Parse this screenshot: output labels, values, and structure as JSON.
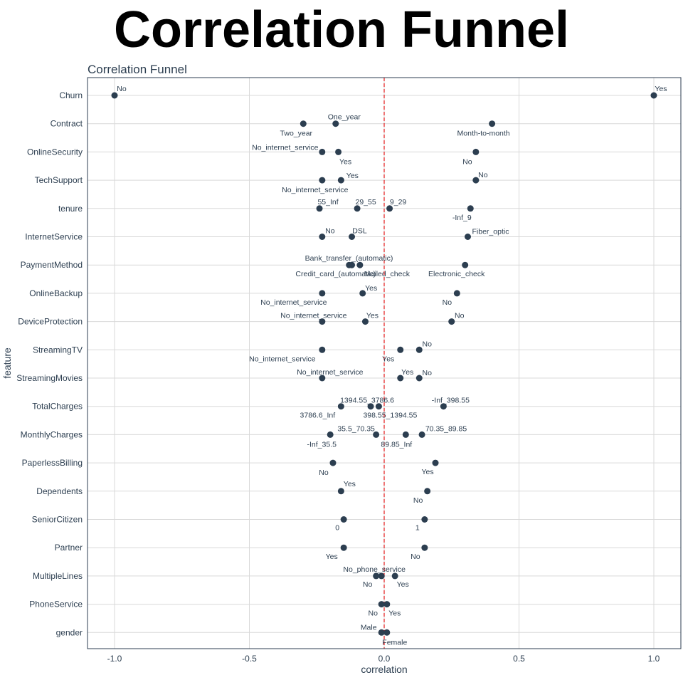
{
  "page": {
    "title": "Correlation Funnel"
  },
  "chart_data": {
    "type": "scatter",
    "title": "Correlation Funnel",
    "xlabel": "correlation",
    "ylabel": "feature",
    "xlim": [
      -1.1,
      1.1
    ],
    "x_ticks": [
      "-1.0",
      "-0.5",
      "0.0",
      "0.5",
      "1.0"
    ],
    "x_tick_values": [
      -1.0,
      -0.5,
      0.0,
      0.5,
      1.0
    ],
    "reference_line": {
      "x": 0,
      "color": "#e41a1c",
      "style": "dashed"
    },
    "point_color": "#2c3e50",
    "grid": true,
    "features": [
      "Churn",
      "Contract",
      "OnlineSecurity",
      "TechSupport",
      "tenure",
      "InternetService",
      "PaymentMethod",
      "OnlineBackup",
      "DeviceProtection",
      "StreamingTV",
      "StreamingMovies",
      "TotalCharges",
      "MonthlyCharges",
      "PaperlessBilling",
      "Dependents",
      "SeniorCitizen",
      "Partner",
      "MultipleLines",
      "PhoneService",
      "gender"
    ],
    "points": [
      {
        "feature": "Churn",
        "label": "No",
        "x": -1.0
      },
      {
        "feature": "Churn",
        "label": "Yes",
        "x": 1.0
      },
      {
        "feature": "Contract",
        "label": "Two_year",
        "x": -0.3
      },
      {
        "feature": "Contract",
        "label": "One_year",
        "x": -0.18
      },
      {
        "feature": "Contract",
        "label": "Month-to-month",
        "x": 0.4
      },
      {
        "feature": "OnlineSecurity",
        "label": "No_internet_service",
        "x": -0.23
      },
      {
        "feature": "OnlineSecurity",
        "label": "Yes",
        "x": -0.17
      },
      {
        "feature": "OnlineSecurity",
        "label": "No",
        "x": 0.34
      },
      {
        "feature": "TechSupport",
        "label": "No_internet_service",
        "x": -0.23
      },
      {
        "feature": "TechSupport",
        "label": "Yes",
        "x": -0.16
      },
      {
        "feature": "TechSupport",
        "label": "No",
        "x": 0.34
      },
      {
        "feature": "tenure",
        "label": "55_Inf",
        "x": -0.24
      },
      {
        "feature": "tenure",
        "label": "29_55",
        "x": -0.1
      },
      {
        "feature": "tenure",
        "label": "9_29",
        "x": 0.02
      },
      {
        "feature": "tenure",
        "label": "-Inf_9",
        "x": 0.32
      },
      {
        "feature": "InternetService",
        "label": "No",
        "x": -0.23
      },
      {
        "feature": "InternetService",
        "label": "DSL",
        "x": -0.12
      },
      {
        "feature": "InternetService",
        "label": "Fiber_optic",
        "x": 0.31
      },
      {
        "feature": "PaymentMethod",
        "label": "Credit_card_(automatic)",
        "x": -0.13
      },
      {
        "feature": "PaymentMethod",
        "label": "Bank_transfer_(automatic)",
        "x": -0.12
      },
      {
        "feature": "PaymentMethod",
        "label": "Mailed_check",
        "x": -0.09
      },
      {
        "feature": "PaymentMethod",
        "label": "Electronic_check",
        "x": 0.3
      },
      {
        "feature": "OnlineBackup",
        "label": "No_internet_service",
        "x": -0.23
      },
      {
        "feature": "OnlineBackup",
        "label": "Yes",
        "x": -0.08
      },
      {
        "feature": "OnlineBackup",
        "label": "No",
        "x": 0.27
      },
      {
        "feature": "DeviceProtection",
        "label": "No_internet_service",
        "x": -0.23
      },
      {
        "feature": "DeviceProtection",
        "label": "Yes",
        "x": -0.07
      },
      {
        "feature": "DeviceProtection",
        "label": "No",
        "x": 0.25
      },
      {
        "feature": "StreamingTV",
        "label": "No_internet_service",
        "x": -0.23
      },
      {
        "feature": "StreamingTV",
        "label": "Yes",
        "x": 0.06
      },
      {
        "feature": "StreamingTV",
        "label": "No",
        "x": 0.13
      },
      {
        "feature": "StreamingMovies",
        "label": "No_internet_service",
        "x": -0.23
      },
      {
        "feature": "StreamingMovies",
        "label": "Yes",
        "x": 0.06
      },
      {
        "feature": "StreamingMovies",
        "label": "No",
        "x": 0.13
      },
      {
        "feature": "TotalCharges",
        "label": "3786.6_Inf",
        "x": -0.16
      },
      {
        "feature": "TotalCharges",
        "label": "1394.55_3786.6",
        "x": -0.05
      },
      {
        "feature": "TotalCharges",
        "label": "398.55_1394.55",
        "x": -0.02
      },
      {
        "feature": "TotalCharges",
        "label": "-Inf_398.55",
        "x": 0.22
      },
      {
        "feature": "MonthlyCharges",
        "label": "-Inf_35.5",
        "x": -0.2
      },
      {
        "feature": "MonthlyCharges",
        "label": "35.5_70.35",
        "x": -0.03
      },
      {
        "feature": "MonthlyCharges",
        "label": "89.85_Inf",
        "x": 0.08
      },
      {
        "feature": "MonthlyCharges",
        "label": "70.35_89.85",
        "x": 0.14
      },
      {
        "feature": "PaperlessBilling",
        "label": "No",
        "x": -0.19
      },
      {
        "feature": "PaperlessBilling",
        "label": "Yes",
        "x": 0.19
      },
      {
        "feature": "Dependents",
        "label": "Yes",
        "x": -0.16
      },
      {
        "feature": "Dependents",
        "label": "No",
        "x": 0.16
      },
      {
        "feature": "SeniorCitizen",
        "label": "0",
        "x": -0.15
      },
      {
        "feature": "SeniorCitizen",
        "label": "1",
        "x": 0.15
      },
      {
        "feature": "Partner",
        "label": "Yes",
        "x": -0.15
      },
      {
        "feature": "Partner",
        "label": "No",
        "x": 0.15
      },
      {
        "feature": "MultipleLines",
        "label": "No",
        "x": -0.03
      },
      {
        "feature": "MultipleLines",
        "label": "No_phone_service",
        "x": -0.01
      },
      {
        "feature": "MultipleLines",
        "label": "Yes",
        "x": 0.04
      },
      {
        "feature": "PhoneService",
        "label": "No",
        "x": -0.01
      },
      {
        "feature": "PhoneService",
        "label": "Yes",
        "x": 0.01
      },
      {
        "feature": "gender",
        "label": "Male",
        "x": -0.01
      },
      {
        "feature": "gender",
        "label": "Female",
        "x": 0.01
      }
    ]
  }
}
